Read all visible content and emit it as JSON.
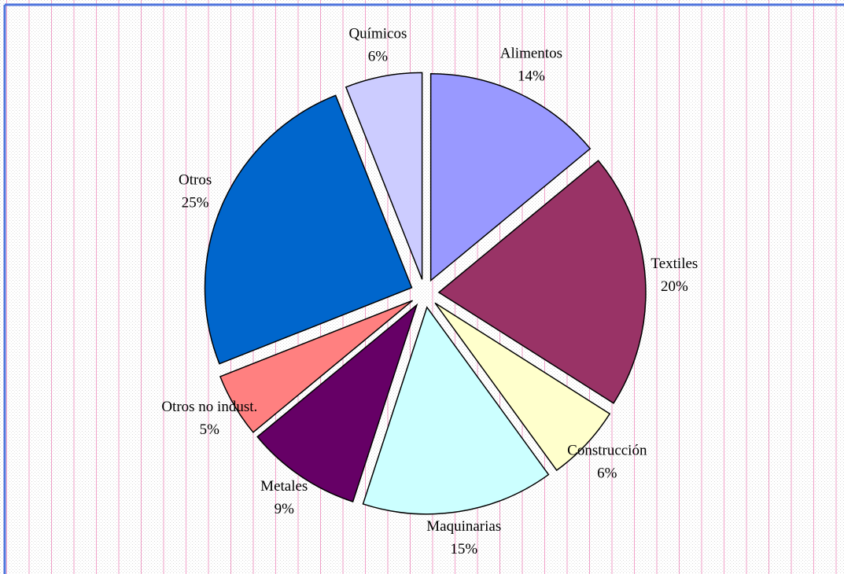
{
  "chart_data": {
    "type": "pie",
    "categories": [
      "Alimentos",
      "Textiles",
      "Construcción",
      "Maquinarias",
      "Metales",
      "Otros no indust.",
      "Otros",
      "Químicos"
    ],
    "values": [
      14,
      20,
      6,
      15,
      9,
      5,
      25,
      6
    ],
    "value_labels": [
      "14%",
      "20%",
      "6%",
      "15%",
      "9%",
      "5%",
      "25%",
      "6%"
    ],
    "colors": [
      "#9999ff",
      "#993366",
      "#ffffcc",
      "#ccffff",
      "#660066",
      "#ff8080",
      "#0066cc",
      "#ccccff"
    ]
  }
}
